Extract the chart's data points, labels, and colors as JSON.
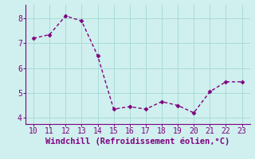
{
  "x": [
    10,
    11,
    12,
    13,
    14,
    15,
    16,
    17,
    18,
    19,
    20,
    21,
    22,
    23
  ],
  "y": [
    7.2,
    7.35,
    8.1,
    7.9,
    6.5,
    4.35,
    4.45,
    4.35,
    4.65,
    4.5,
    4.2,
    5.05,
    5.45,
    5.45
  ],
  "line_color": "#800080",
  "marker": "D",
  "marker_size": 2.5,
  "line_width": 1.0,
  "background_color": "#cff0ee",
  "grid_color": "#aadada",
  "xlabel": "Windchill (Refroidissement éolien,°C)",
  "xlabel_color": "#800080",
  "tick_color": "#800080",
  "spine_color": "#800080",
  "ylim": [
    3.75,
    8.55
  ],
  "xlim": [
    9.5,
    23.5
  ],
  "yticks": [
    4,
    5,
    6,
    7,
    8
  ],
  "xticks": [
    10,
    11,
    12,
    13,
    14,
    15,
    16,
    17,
    18,
    19,
    20,
    21,
    22,
    23
  ],
  "tick_labelsize": 7,
  "xlabel_fontsize": 7.5,
  "xlabel_fontweight": "bold"
}
